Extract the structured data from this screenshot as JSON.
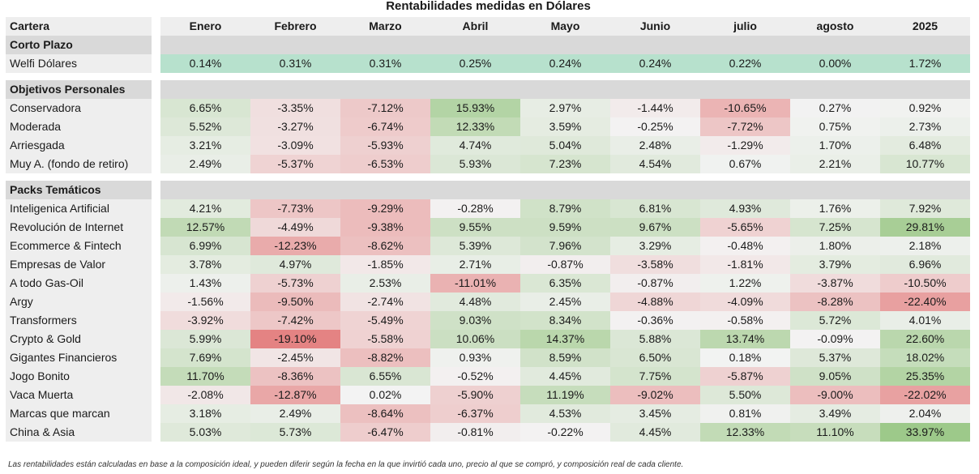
{
  "title": "Rentabilidades medidas en Dólares",
  "header": {
    "cartera_label": "Cartera",
    "months": [
      "Enero",
      "Febrero",
      "Marzo",
      "Abril",
      "Mayo",
      "Junio",
      "julio",
      "agosto",
      "2025"
    ]
  },
  "sections": [
    {
      "name": "Corto Plazo",
      "rows": [
        {
          "name": "Welfi Dólares",
          "values": [
            "0.14%",
            "0.31%",
            "0.31%",
            "0.25%",
            "0.24%",
            "0.24%",
            "0.22%",
            "0.00%",
            "1.72%"
          ]
        }
      ]
    },
    {
      "name": "Objetivos Personales",
      "rows": [
        {
          "name": "Conservadora",
          "values": [
            "6.65%",
            "-3.35%",
            "-7.12%",
            "15.93%",
            "2.97%",
            "-1.44%",
            "-10.65%",
            "0.27%",
            "0.92%"
          ]
        },
        {
          "name": "Moderada",
          "values": [
            "5.52%",
            "-3.27%",
            "-6.74%",
            "12.33%",
            "3.59%",
            "-0.25%",
            "-7.72%",
            "0.75%",
            "2.73%"
          ]
        },
        {
          "name": "Arriesgada",
          "values": [
            "3.21%",
            "-3.09%",
            "-5.93%",
            "4.74%",
            "5.04%",
            "2.48%",
            "-1.29%",
            "1.70%",
            "6.48%"
          ]
        },
        {
          "name": "Muy A. (fondo de retiro)",
          "values": [
            "2.49%",
            "-5.37%",
            "-6.53%",
            "5.93%",
            "7.23%",
            "4.54%",
            "0.67%",
            "2.21%",
            "10.77%"
          ]
        }
      ]
    },
    {
      "name": "Packs Temáticos",
      "rows": [
        {
          "name": "Inteligenica Artificial",
          "values": [
            "4.21%",
            "-7.73%",
            "-9.29%",
            "-0.28%",
            "8.79%",
            "6.81%",
            "4.93%",
            "1.76%",
            "7.92%"
          ]
        },
        {
          "name": "Revolución de Internet",
          "values": [
            "12.57%",
            "-4.49%",
            "-9.38%",
            "9.55%",
            "9.59%",
            "9.67%",
            "-5.65%",
            "7.25%",
            "29.81%"
          ]
        },
        {
          "name": "Ecommerce & Fintech",
          "values": [
            "6.99%",
            "-12.23%",
            "-8.62%",
            "5.39%",
            "7.96%",
            "3.29%",
            "-0.48%",
            "1.80%",
            "2.18%"
          ]
        },
        {
          "name": "Empresas de Valor",
          "values": [
            "3.78%",
            "4.97%",
            "-1.85%",
            "2.71%",
            "-0.87%",
            "-3.58%",
            "-1.81%",
            "3.79%",
            "6.96%"
          ]
        },
        {
          "name": "A todo Gas-Oil",
          "values": [
            "1.43%",
            "-5.73%",
            "2.53%",
            "-11.01%",
            "6.35%",
            "-0.87%",
            "1.22%",
            "-3.87%",
            "-10.50%"
          ]
        },
        {
          "name": "Argy",
          "values": [
            "-1.56%",
            "-9.50%",
            "-2.74%",
            "4.48%",
            "2.45%",
            "-4.88%",
            "-4.09%",
            "-8.28%",
            "-22.40%"
          ]
        },
        {
          "name": "Transformers",
          "values": [
            "-3.92%",
            "-7.42%",
            "-5.49%",
            "9.03%",
            "8.34%",
            "-0.36%",
            "-0.58%",
            "5.72%",
            "4.01%"
          ]
        },
        {
          "name": "Crypto & Gold",
          "values": [
            "5.99%",
            "-19.10%",
            "-5.58%",
            "10.06%",
            "14.37%",
            "5.88%",
            "13.74%",
            "-0.09%",
            "22.60%"
          ]
        },
        {
          "name": "Gigantes Financieros",
          "values": [
            "7.69%",
            "-2.45%",
            "-8.82%",
            "0.93%",
            "8.59%",
            "6.50%",
            "0.18%",
            "5.37%",
            "18.02%"
          ]
        },
        {
          "name": "Jogo Bonito",
          "values": [
            "11.70%",
            "-8.36%",
            "6.55%",
            "-0.52%",
            "4.45%",
            "7.75%",
            "-5.87%",
            "9.05%",
            "25.35%"
          ]
        },
        {
          "name": "Vaca Muerta",
          "values": [
            "-2.08%",
            "-12.87%",
            "0.02%",
            "-5.90%",
            "11.19%",
            "-9.02%",
            "5.50%",
            "-9.00%",
            "-22.02%"
          ]
        },
        {
          "name": "Marcas que marcan",
          "values": [
            "3.18%",
            "2.49%",
            "-8.64%",
            "-6.37%",
            "4.53%",
            "3.45%",
            "0.81%",
            "3.49%",
            "2.04%"
          ]
        },
        {
          "name": "China & Asia",
          "values": [
            "5.03%",
            "5.73%",
            "-6.47%",
            "-0.81%",
            "-0.22%",
            "4.45%",
            "12.33%",
            "11.10%",
            "33.97%"
          ]
        }
      ]
    }
  ],
  "colors": {
    "header_grey": "#d9d9d9",
    "name_bg": "#eeeeee",
    "welfi_green": "#b7e1cd",
    "positive_max": "#93c47d",
    "negative_max": "#e06666",
    "neutral": "#f3f3f3"
  },
  "footnote": "Las rentabilidades están calculadas en base a la composición ideal, y pueden diferir según la fecha en la que invirtió cada uno, precio al que se compró, y composición real de cada cliente."
}
